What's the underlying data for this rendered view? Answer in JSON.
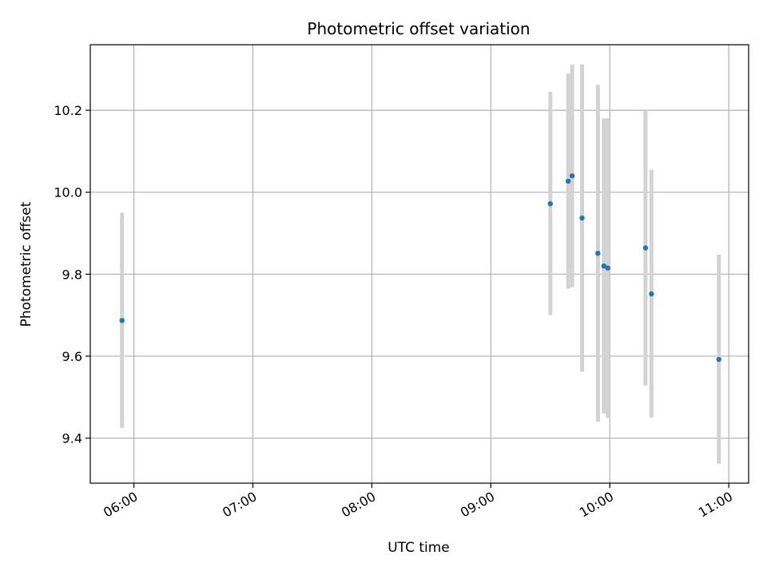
{
  "chart_data": {
    "type": "scatter",
    "title": "Photometric offset variation",
    "xlabel": "UTC time",
    "ylabel": "Photometric offset",
    "x_axis": {
      "kind": "time",
      "range": [
        "05:38",
        "11:10"
      ],
      "ticks": [
        "06:00",
        "07:00",
        "08:00",
        "09:00",
        "10:00",
        "11:00"
      ]
    },
    "y_axis": {
      "range": [
        9.29,
        10.36
      ],
      "ticks": [
        9.4,
        9.6,
        9.8,
        10.0,
        10.2
      ]
    },
    "grid": true,
    "legend": "none",
    "colors": {
      "point": "#1f77b4",
      "errorbar": "#d3d3d3",
      "grid": "#b0b0b0"
    },
    "series": [
      {
        "points": [
          {
            "x": "05:54",
            "y": 9.687,
            "ylow": 9.425,
            "yhigh": 9.95
          },
          {
            "x": "09:30",
            "y": 9.972,
            "ylow": 9.7,
            "yhigh": 10.245
          },
          {
            "x": "09:39",
            "y": 10.027,
            "ylow": 9.765,
            "yhigh": 10.29
          },
          {
            "x": "09:41",
            "y": 10.04,
            "ylow": 9.768,
            "yhigh": 10.312
          },
          {
            "x": "09:46",
            "y": 9.937,
            "ylow": 9.562,
            "yhigh": 10.312
          },
          {
            "x": "09:54",
            "y": 9.851,
            "ylow": 9.44,
            "yhigh": 10.262
          },
          {
            "x": "09:57",
            "y": 9.82,
            "ylow": 9.46,
            "yhigh": 10.18
          },
          {
            "x": "09:59",
            "y": 9.815,
            "ylow": 9.449,
            "yhigh": 10.181
          },
          {
            "x": "10:18",
            "y": 9.864,
            "ylow": 9.528,
            "yhigh": 10.2
          },
          {
            "x": "10:21",
            "y": 9.752,
            "ylow": 9.45,
            "yhigh": 10.055
          },
          {
            "x": "10:55",
            "y": 9.592,
            "ylow": 9.337,
            "yhigh": 9.848
          }
        ]
      }
    ]
  }
}
